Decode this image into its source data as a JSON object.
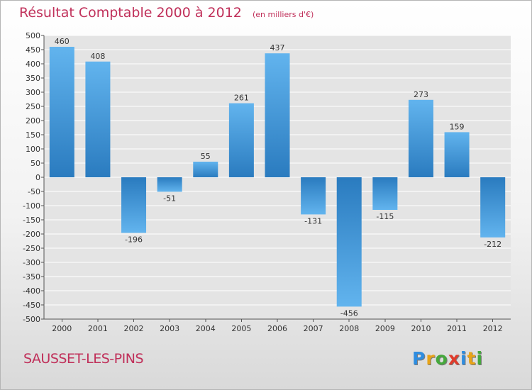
{
  "title": "Résultat Comptable 2000 à 2012",
  "subtitle": "(en milliers d'€)",
  "commune": "SAUSSET-LES-PINS",
  "logo_text": "Proxiti",
  "colors": {
    "title": "#c0305a",
    "bar_light": "#62b4ee",
    "bar_dark": "#2a7bbf",
    "logo": [
      "#2e8de0",
      "#e8a317",
      "#45a83c",
      "#e03b2b",
      "#2e8de0",
      "#e8a317",
      "#45a83c"
    ]
  },
  "chart_data": {
    "type": "bar",
    "categories": [
      "2000",
      "2001",
      "2002",
      "2003",
      "2004",
      "2005",
      "2006",
      "2007",
      "2008",
      "2009",
      "2010",
      "2011",
      "2012"
    ],
    "values": [
      460,
      408,
      -196,
      -51,
      55,
      261,
      437,
      -131,
      -456,
      -115,
      273,
      159,
      -212
    ],
    "ylim": [
      -500,
      500
    ],
    "ytick_step": 50,
    "grid": true
  }
}
